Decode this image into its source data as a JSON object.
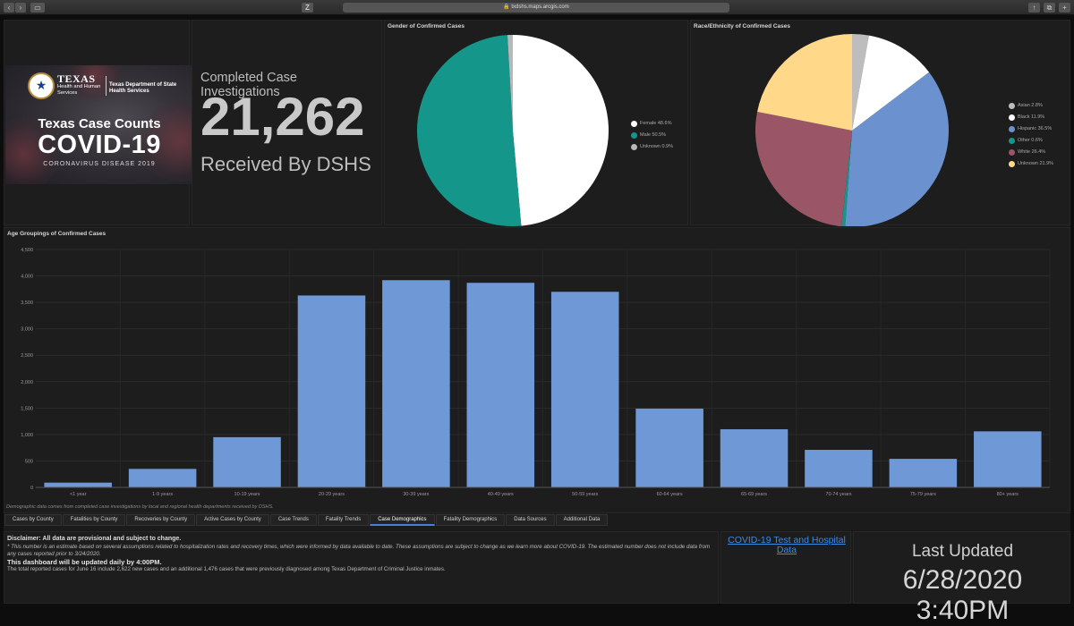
{
  "browser": {
    "url": "txdshs.maps.arcgis.com",
    "sidebar_icon": "sidebar-icon",
    "reader_icon": "reader-icon"
  },
  "banner": {
    "org_texas": "TEXAS",
    "org_hhs": "Health and Human Services",
    "org_dshs": "Texas Department of State Health Services",
    "counts": "Texas Case Counts",
    "covid": "COVID-19",
    "subtitle": "CORONAVIRUS DISEASE 2019"
  },
  "investigations": {
    "label": "Completed Case Investigations",
    "value": "21,262",
    "sub": "Received By DSHS"
  },
  "gender": {
    "title": "Gender of Confirmed Cases",
    "slices": [
      {
        "label": "Female",
        "pct_text": "48.6%",
        "value": 48.6,
        "color": "#ffffff"
      },
      {
        "label": "Male",
        "pct_text": "50.5%",
        "value": 50.5,
        "color": "#14978a"
      },
      {
        "label": "Unknown",
        "pct_text": "0.9%",
        "value": 0.9,
        "color": "#b8b8b8"
      }
    ]
  },
  "race": {
    "title": "Race/Ethnicity of Confirmed Cases",
    "slices": [
      {
        "label": "Asian",
        "pct_text": "2.8%",
        "value": 2.8,
        "color": "#bdbdbd"
      },
      {
        "label": "Black",
        "pct_text": "11.9%",
        "value": 11.9,
        "color": "#ffffff"
      },
      {
        "label": "Hispanic",
        "pct_text": "36.5%",
        "value": 36.5,
        "color": "#6b92cf"
      },
      {
        "label": "Other",
        "pct_text": "0.6%",
        "value": 0.6,
        "color": "#14978a"
      },
      {
        "label": "White",
        "pct_text": "26.4%",
        "value": 26.4,
        "color": "#9a5566"
      },
      {
        "label": "Unknown",
        "pct_text": "21.9%",
        "value": 21.9,
        "color": "#ffd88a"
      }
    ]
  },
  "chart_data": {
    "type": "bar",
    "title": "Age Groupings of Confirmed Cases",
    "categories": [
      "<1 year",
      "1-9 years",
      "10-19 years",
      "20-29 years",
      "30-39 years",
      "40-49 years",
      "50-59 years",
      "60-64 years",
      "65-69 years",
      "70-74 years",
      "75-79 years",
      "80+ years"
    ],
    "values": [
      90,
      350,
      950,
      3630,
      3920,
      3870,
      3700,
      1490,
      1100,
      710,
      540,
      1060
    ],
    "yticks": [
      "0",
      "500",
      "1,000",
      "1,500",
      "2,000",
      "2,500",
      "3,000",
      "3,500",
      "4,000",
      "4,500"
    ],
    "ylim": [
      0,
      4500
    ],
    "bar_color": "#6f98d6",
    "xlabel": "",
    "ylabel": ""
  },
  "footnote": "Demographic data comes from completed case investigations by local and regional health departments received by DSHS.",
  "tabs": [
    "Cases by County",
    "Fatalities by County",
    "Recoveries by County",
    "Active Cases by County",
    "Case Trends",
    "Fatality Trends",
    "Case Demographics",
    "Fatality Demographics",
    "Data Sources",
    "Additional Data"
  ],
  "active_tab": "Case Demographics",
  "disclaimer": {
    "title": "Disclaimer: All data are provisional and subject to change.",
    "note": "* This number is an estimate based on several assumptions related to hospitalization rates and recovery times, which were informed by data available to date. These assumptions are subject to change as we learn more about COVID-19. The estimated number does not include data from any cases reported prior to 3/24/2020.",
    "update": "This dashboard will be updated daily by 4:00PM.",
    "total": "The total reported cases for June 16 include 2,622 new cases and an additional 1,476 cases that were previously diagnosed among Texas Department of Criminal Justice inmates."
  },
  "links": {
    "test_hospital": "COVID-19 Test and Hospital Data"
  },
  "last_updated": {
    "label": "Last Updated",
    "value": "6/28/2020 3:40PM"
  }
}
